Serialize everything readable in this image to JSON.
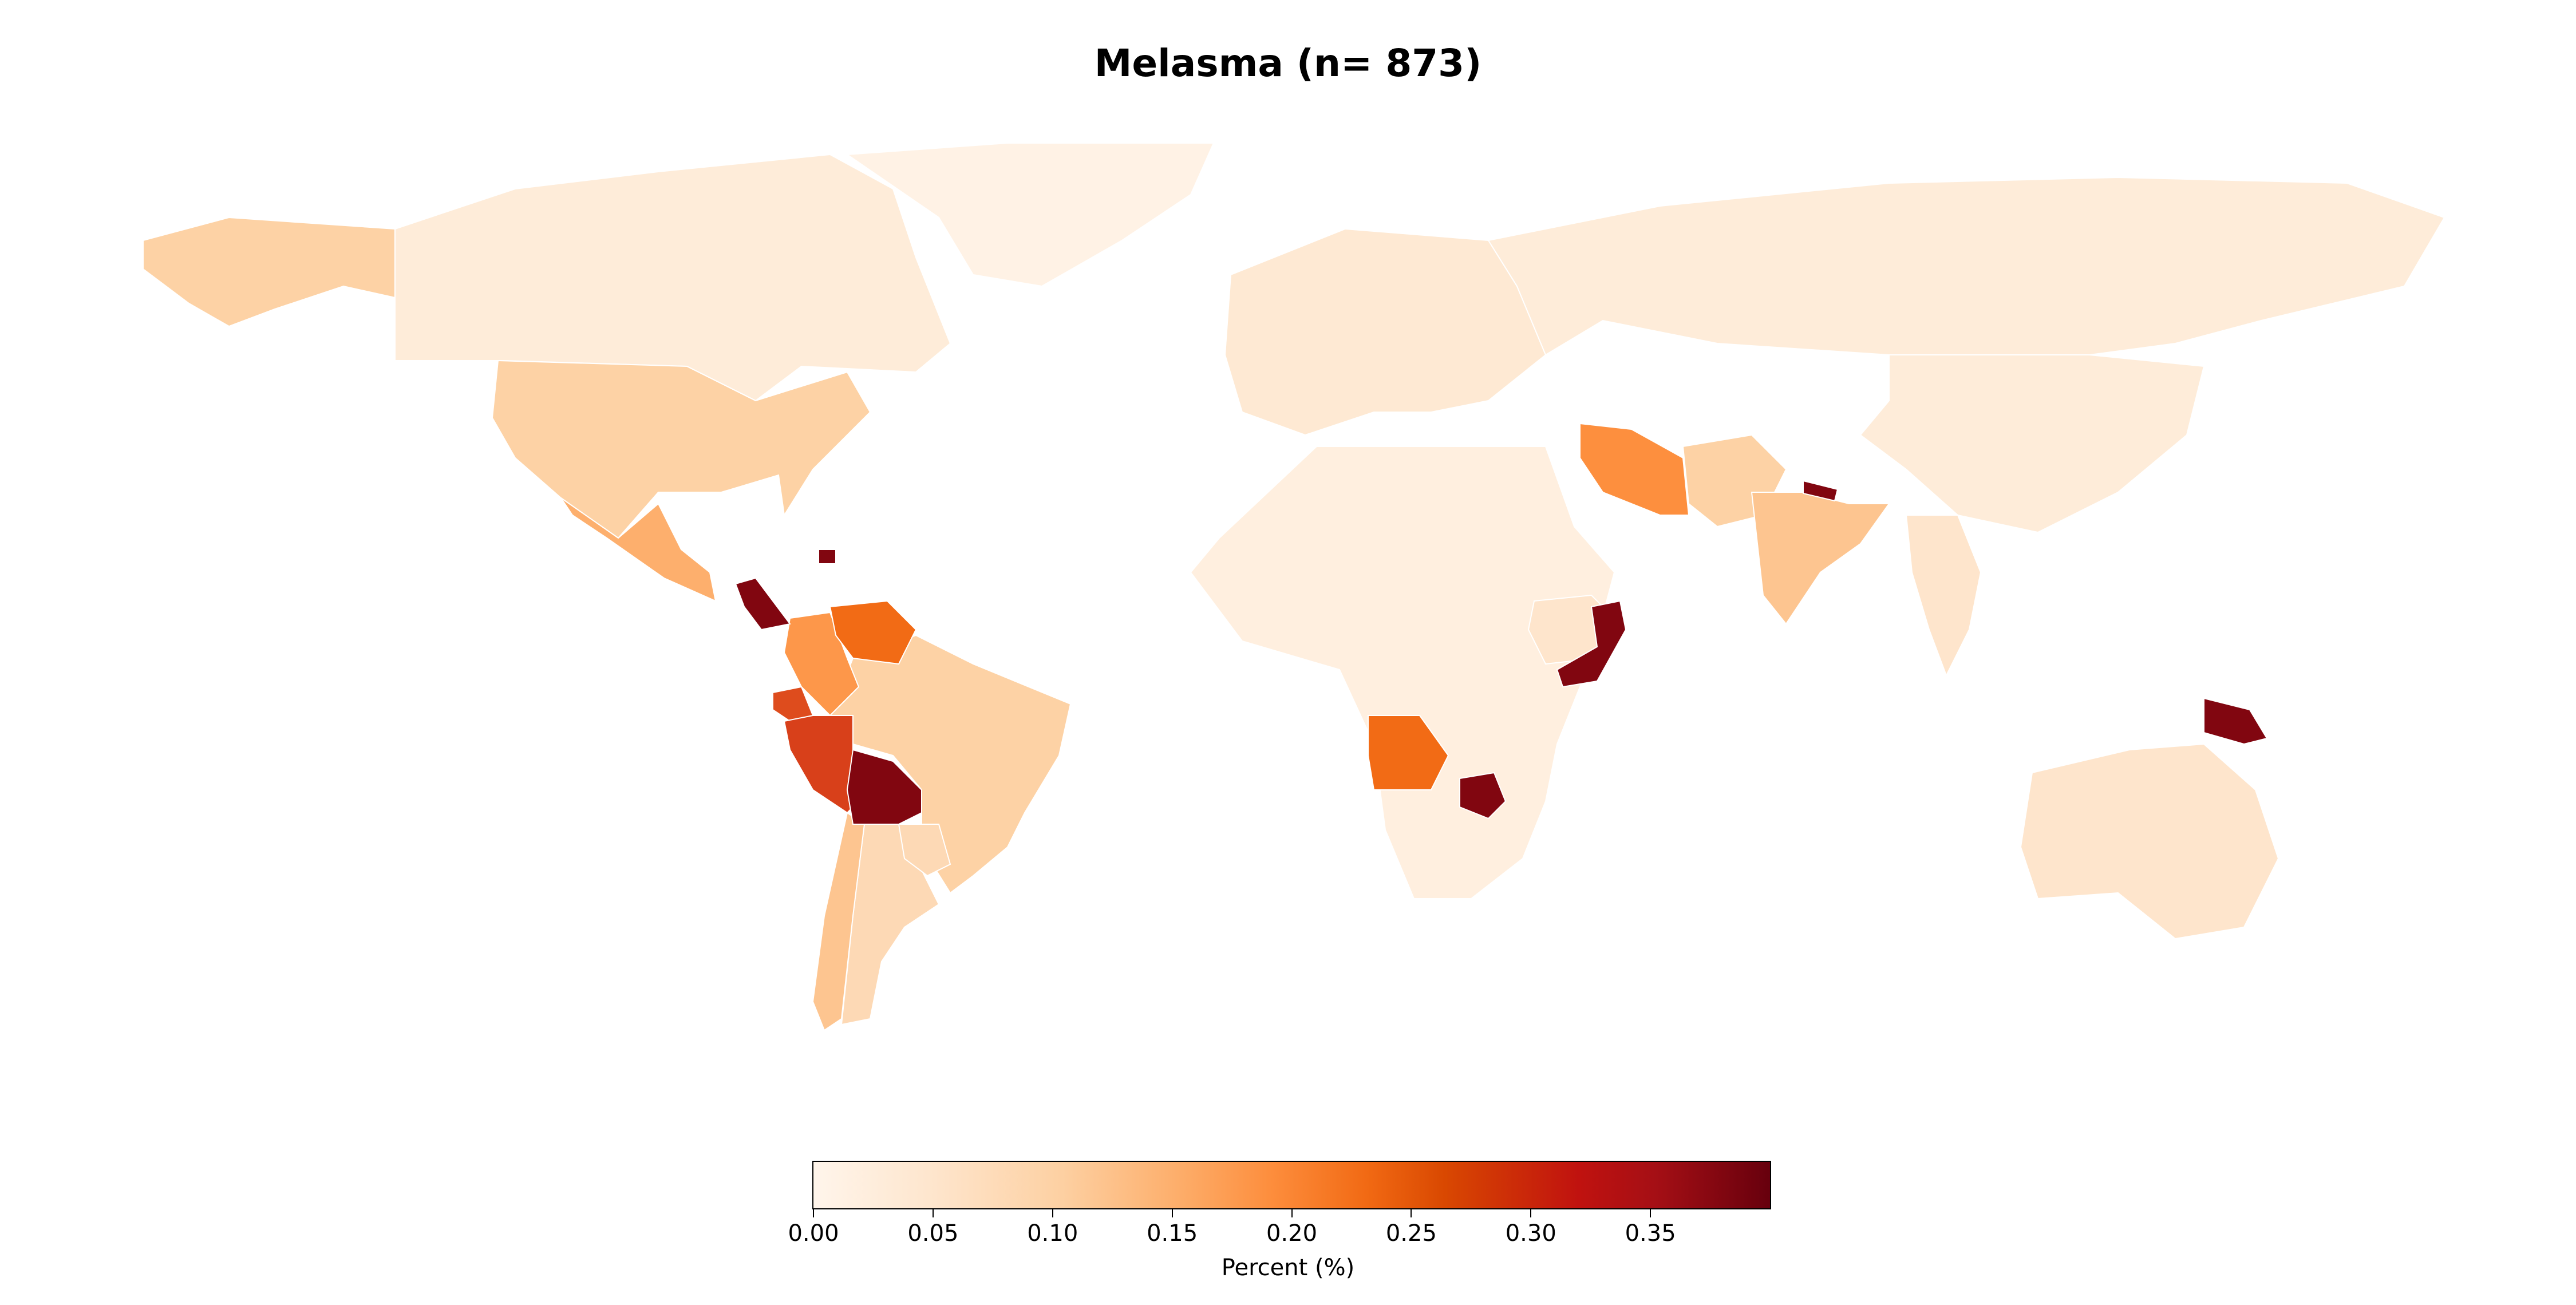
{
  "title": "Melasma (n= 873)",
  "colorbar": {
    "label": "Percent (%)",
    "min": 0.0,
    "max": 0.4,
    "ticks": [
      "0.00",
      "0.05",
      "0.10",
      "0.15",
      "0.20",
      "0.25",
      "0.30",
      "0.35"
    ],
    "colormap": "OrRd"
  },
  "regions": [
    {
      "name": "Canada",
      "value": 0.03
    },
    {
      "name": "United States",
      "value": 0.1
    },
    {
      "name": "Alaska",
      "value": 0.1
    },
    {
      "name": "Greenland",
      "value": 0.01
    },
    {
      "name": "Mexico",
      "value": 0.15
    },
    {
      "name": "Guatemala/Honduras",
      "value": 0.38
    },
    {
      "name": "Haiti",
      "value": 0.38
    },
    {
      "name": "Colombia",
      "value": 0.18
    },
    {
      "name": "Venezuela",
      "value": 0.23
    },
    {
      "name": "Ecuador",
      "value": 0.27
    },
    {
      "name": "Peru",
      "value": 0.28
    },
    {
      "name": "Bolivia",
      "value": 0.38
    },
    {
      "name": "Brazil",
      "value": 0.1
    },
    {
      "name": "Argentina",
      "value": 0.08
    },
    {
      "name": "Chile",
      "value": 0.12
    },
    {
      "name": "Paraguay",
      "value": 0.08
    },
    {
      "name": "Russia",
      "value": 0.03
    },
    {
      "name": "Europe",
      "value": 0.04
    },
    {
      "name": "Iran",
      "value": 0.19
    },
    {
      "name": "Pakistan/Afghanistan",
      "value": 0.1
    },
    {
      "name": "India",
      "value": 0.12
    },
    {
      "name": "Nepal",
      "value": 0.38
    },
    {
      "name": "China",
      "value": 0.03
    },
    {
      "name": "Somalia",
      "value": 0.38
    },
    {
      "name": "Ethiopia",
      "value": 0.05
    },
    {
      "name": "Angola",
      "value": 0.23
    },
    {
      "name": "Zimbabwe",
      "value": 0.38
    },
    {
      "name": "Papua New Guinea",
      "value": 0.38
    },
    {
      "name": "Australia",
      "value": 0.05
    },
    {
      "name": "Africa (rest)",
      "value": 0.02
    },
    {
      "name": "Southeast Asia",
      "value": 0.05
    }
  ]
}
